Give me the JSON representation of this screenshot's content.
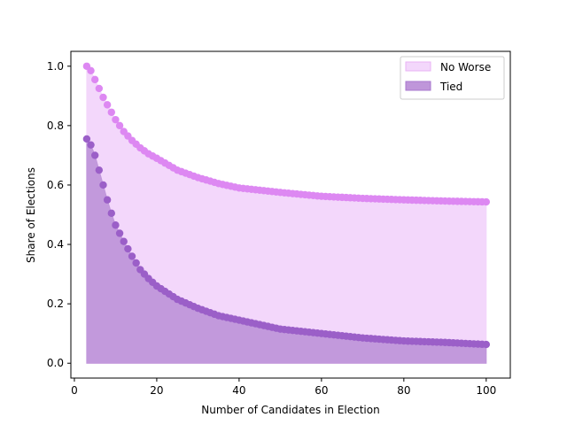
{
  "chart_data": {
    "type": "scatter",
    "title": "",
    "xlabel": "Number of Candidates in Election",
    "ylabel": "Share of Elections",
    "xlim": [
      -0.85,
      105.85
    ],
    "ylim": [
      -0.05,
      1.05
    ],
    "xticks": [
      0,
      20,
      40,
      60,
      80,
      100
    ],
    "xtick_labels": [
      "0",
      "20",
      "40",
      "60",
      "80",
      "100"
    ],
    "yticks": [
      0.0,
      0.2,
      0.4,
      0.6,
      0.8,
      1.0
    ],
    "ytick_labels": [
      "0.0",
      "0.2",
      "0.4",
      "0.6",
      "0.8",
      "1.0"
    ],
    "grid": false,
    "legend_position": "top-right",
    "x_range": [
      3,
      100
    ],
    "series": [
      {
        "name": "No Worse",
        "color": "#dd88f2",
        "fill": "#f3d7fb",
        "x": [
          3,
          4,
          5,
          6,
          7,
          8,
          9,
          10,
          12,
          14,
          16,
          18,
          20,
          25,
          30,
          35,
          40,
          50,
          60,
          70,
          80,
          90,
          100
        ],
        "values": [
          1.0,
          0.985,
          0.955,
          0.925,
          0.895,
          0.87,
          0.845,
          0.82,
          0.78,
          0.75,
          0.725,
          0.705,
          0.69,
          0.65,
          0.625,
          0.605,
          0.59,
          0.575,
          0.562,
          0.555,
          0.55,
          0.546,
          0.543
        ]
      },
      {
        "name": "Tied",
        "color": "#9b5fc8",
        "fill": "#bf96da",
        "x": [
          3,
          4,
          5,
          6,
          7,
          8,
          9,
          10,
          12,
          14,
          16,
          18,
          20,
          25,
          30,
          35,
          40,
          50,
          60,
          70,
          80,
          90,
          100
        ],
        "values": [
          0.755,
          0.735,
          0.7,
          0.65,
          0.6,
          0.55,
          0.505,
          0.465,
          0.41,
          0.36,
          0.315,
          0.285,
          0.26,
          0.215,
          0.185,
          0.16,
          0.145,
          0.115,
          0.1,
          0.085,
          0.075,
          0.07,
          0.063
        ]
      }
    ]
  }
}
